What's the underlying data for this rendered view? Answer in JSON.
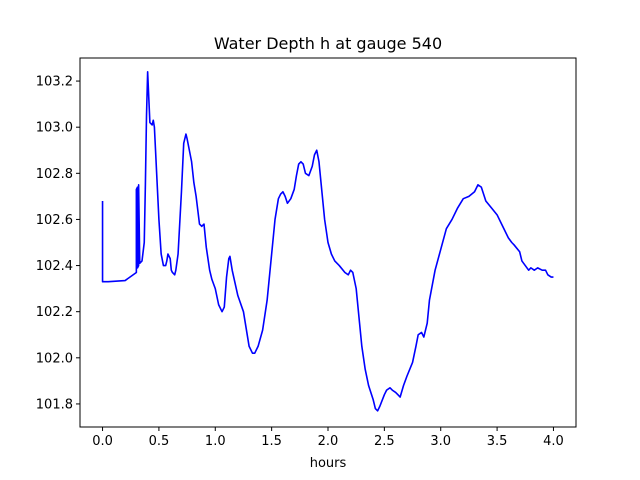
{
  "chart_data": {
    "type": "line",
    "title": "Water Depth h at gauge 540",
    "xlabel": "hours",
    "ylabel": "",
    "xlim": [
      -0.2,
      4.2
    ],
    "ylim": [
      101.7,
      103.3
    ],
    "xticks": [
      0.0,
      0.5,
      1.0,
      1.5,
      2.0,
      2.5,
      3.0,
      3.5,
      4.0
    ],
    "xtick_labels": [
      "0.0",
      "0.5",
      "1.0",
      "1.5",
      "2.0",
      "2.5",
      "3.0",
      "3.5",
      "4.0"
    ],
    "yticks": [
      101.8,
      102.0,
      102.2,
      102.4,
      102.6,
      102.8,
      103.0,
      103.2
    ],
    "ytick_labels": [
      "101.8",
      "102.0",
      "102.2",
      "102.4",
      "102.6",
      "102.8",
      "103.0",
      "103.2"
    ],
    "grid": false,
    "color": "#0000ff",
    "series": [
      {
        "x": [
          0.0,
          0.0,
          0.05,
          0.2,
          0.3,
          0.3,
          0.31,
          0.31,
          0.32,
          0.32,
          0.33,
          0.35,
          0.37,
          0.38,
          0.39,
          0.4,
          0.41,
          0.42,
          0.44,
          0.45,
          0.46,
          0.47,
          0.48,
          0.5,
          0.52,
          0.54,
          0.56,
          0.57,
          0.58,
          0.6,
          0.61,
          0.62,
          0.64,
          0.65,
          0.67,
          0.7,
          0.72,
          0.74,
          0.75,
          0.77,
          0.79,
          0.81,
          0.83,
          0.86,
          0.88,
          0.9,
          0.92,
          0.95,
          0.97,
          1.0,
          1.03,
          1.06,
          1.08,
          1.1,
          1.12,
          1.13,
          1.15,
          1.2,
          1.25,
          1.3,
          1.33,
          1.35,
          1.38,
          1.42,
          1.46,
          1.5,
          1.53,
          1.56,
          1.58,
          1.6,
          1.62,
          1.64,
          1.67,
          1.7,
          1.72,
          1.74,
          1.76,
          1.78,
          1.8,
          1.83,
          1.86,
          1.88,
          1.9,
          1.92,
          1.95,
          1.97,
          2.0,
          2.03,
          2.06,
          2.1,
          2.15,
          2.18,
          2.2,
          2.22,
          2.25,
          2.28,
          2.3,
          2.33,
          2.36,
          2.4,
          2.42,
          2.44,
          2.46,
          2.5,
          2.52,
          2.55,
          2.57,
          2.6,
          2.62,
          2.64,
          2.67,
          2.7,
          2.75,
          2.78,
          2.8,
          2.83,
          2.85,
          2.88,
          2.9,
          2.95,
          3.0,
          3.05,
          3.1,
          3.15,
          3.2,
          3.25,
          3.3,
          3.33,
          3.36,
          3.4,
          3.45,
          3.5,
          3.55,
          3.6,
          3.63,
          3.65,
          3.7,
          3.72,
          3.75,
          3.78,
          3.8,
          3.83,
          3.86,
          3.9,
          3.93,
          3.95,
          3.98,
          4.0
        ],
        "y": [
          102.68,
          102.33,
          102.33,
          102.335,
          102.37,
          102.73,
          102.74,
          102.39,
          102.4,
          102.75,
          102.41,
          102.42,
          102.5,
          102.75,
          103.05,
          103.24,
          103.13,
          103.02,
          103.01,
          103.03,
          103.0,
          102.9,
          102.8,
          102.6,
          102.45,
          102.4,
          102.4,
          102.42,
          102.45,
          102.43,
          102.38,
          102.37,
          102.36,
          102.38,
          102.45,
          102.72,
          102.93,
          102.97,
          102.95,
          102.9,
          102.85,
          102.76,
          102.7,
          102.58,
          102.57,
          102.58,
          102.48,
          102.38,
          102.34,
          102.3,
          102.23,
          102.2,
          102.22,
          102.35,
          102.43,
          102.44,
          102.38,
          102.27,
          102.2,
          102.05,
          102.02,
          102.02,
          102.05,
          102.12,
          102.25,
          102.45,
          102.6,
          102.69,
          102.71,
          102.72,
          102.7,
          102.67,
          102.69,
          102.73,
          102.79,
          102.84,
          102.85,
          102.84,
          102.8,
          102.79,
          102.83,
          102.88,
          102.9,
          102.85,
          102.7,
          102.6,
          102.5,
          102.45,
          102.42,
          102.4,
          102.37,
          102.36,
          102.38,
          102.37,
          102.3,
          102.15,
          102.05,
          101.95,
          101.88,
          101.82,
          101.78,
          101.77,
          101.79,
          101.84,
          101.86,
          101.87,
          101.86,
          101.85,
          101.84,
          101.83,
          101.88,
          101.92,
          101.98,
          102.05,
          102.1,
          102.11,
          102.09,
          102.15,
          102.25,
          102.38,
          102.47,
          102.56,
          102.6,
          102.65,
          102.69,
          102.7,
          102.72,
          102.75,
          102.74,
          102.68,
          102.65,
          102.62,
          102.57,
          102.52,
          102.5,
          102.49,
          102.46,
          102.42,
          102.4,
          102.38,
          102.39,
          102.38,
          102.39,
          102.38,
          102.38,
          102.36,
          102.35,
          102.35
        ]
      }
    ]
  }
}
